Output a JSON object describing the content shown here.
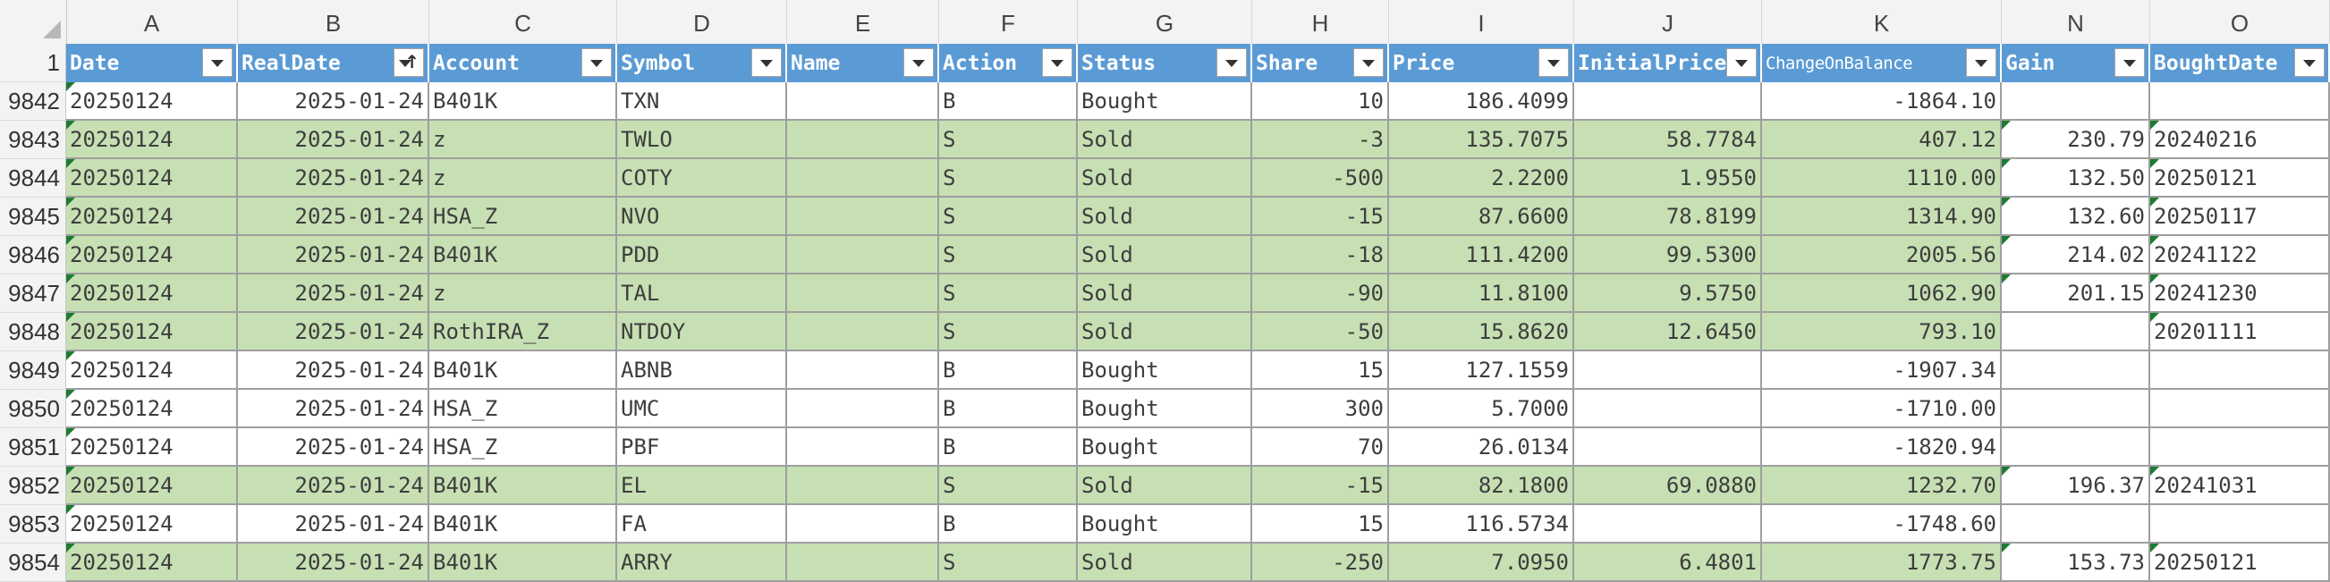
{
  "columns": [
    {
      "letter": "A",
      "header": "Date"
    },
    {
      "letter": "B",
      "header": "RealDate"
    },
    {
      "letter": "C",
      "header": "Account"
    },
    {
      "letter": "D",
      "header": "Symbol"
    },
    {
      "letter": "E",
      "header": "Name"
    },
    {
      "letter": "F",
      "header": "Action"
    },
    {
      "letter": "G",
      "header": "Status"
    },
    {
      "letter": "H",
      "header": "Share"
    },
    {
      "letter": "I",
      "header": "Price"
    },
    {
      "letter": "J",
      "header": "InitialPrice"
    },
    {
      "letter": "K",
      "header": "ChangeOnBalance"
    },
    {
      "letter": "N",
      "header": "Gain"
    },
    {
      "letter": "O",
      "header": "BoughtDate"
    }
  ],
  "header_row_number": "1",
  "sort_indicator_column": "RealDate",
  "colors": {
    "header_blue": "#5b9bd5",
    "sold_green": "#c6e0b4",
    "grid": "#9e9e9e",
    "flag_green": "#1e7b34"
  },
  "rows": [
    {
      "num": "9842",
      "cells": [
        "20250124",
        "2025-01-24",
        "B401K",
        "TXN",
        "",
        "B",
        "Bought",
        "10",
        "186.4099",
        "",
        "-1864.10",
        "",
        ""
      ],
      "status": "Bought"
    },
    {
      "num": "9843",
      "cells": [
        "20250124",
        "2025-01-24",
        "z",
        "TWLO",
        "",
        "S",
        "Sold",
        "-3",
        "135.7075",
        "58.7784",
        "407.12",
        "230.79",
        "20240216"
      ],
      "status": "Sold"
    },
    {
      "num": "9844",
      "cells": [
        "20250124",
        "2025-01-24",
        "z",
        "COTY",
        "",
        "S",
        "Sold",
        "-500",
        "2.2200",
        "1.9550",
        "1110.00",
        "132.50",
        "20250121"
      ],
      "status": "Sold"
    },
    {
      "num": "9845",
      "cells": [
        "20250124",
        "2025-01-24",
        "HSA_Z",
        "NVO",
        "",
        "S",
        "Sold",
        "-15",
        "87.6600",
        "78.8199",
        "1314.90",
        "132.60",
        "20250117"
      ],
      "status": "Sold"
    },
    {
      "num": "9846",
      "cells": [
        "20250124",
        "2025-01-24",
        "B401K",
        "PDD",
        "",
        "S",
        "Sold",
        "-18",
        "111.4200",
        "99.5300",
        "2005.56",
        "214.02",
        "20241122"
      ],
      "status": "Sold"
    },
    {
      "num": "9847",
      "cells": [
        "20250124",
        "2025-01-24",
        "z",
        "TAL",
        "",
        "S",
        "Sold",
        "-90",
        "11.8100",
        "9.5750",
        "1062.90",
        "201.15",
        "20241230"
      ],
      "status": "Sold"
    },
    {
      "num": "9848",
      "cells": [
        "20250124",
        "2025-01-24",
        "RothIRA_Z",
        "NTDOY",
        "",
        "S",
        "Sold",
        "-50",
        "15.8620",
        "12.6450",
        "793.10",
        "",
        "20201111"
      ],
      "status": "Sold"
    },
    {
      "num": "9849",
      "cells": [
        "20250124",
        "2025-01-24",
        "B401K",
        "ABNB",
        "",
        "B",
        "Bought",
        "15",
        "127.1559",
        "",
        "-1907.34",
        "",
        ""
      ],
      "status": "Bought"
    },
    {
      "num": "9850",
      "cells": [
        "20250124",
        "2025-01-24",
        "HSA_Z",
        "UMC",
        "",
        "B",
        "Bought",
        "300",
        "5.7000",
        "",
        "-1710.00",
        "",
        ""
      ],
      "status": "Bought"
    },
    {
      "num": "9851",
      "cells": [
        "20250124",
        "2025-01-24",
        "HSA_Z",
        "PBF",
        "",
        "B",
        "Bought",
        "70",
        "26.0134",
        "",
        "-1820.94",
        "",
        ""
      ],
      "status": "Bought"
    },
    {
      "num": "9852",
      "cells": [
        "20250124",
        "2025-01-24",
        "B401K",
        "EL",
        "",
        "S",
        "Sold",
        "-15",
        "82.1800",
        "69.0880",
        "1232.70",
        "196.37",
        "20241031"
      ],
      "status": "Sold"
    },
    {
      "num": "9853",
      "cells": [
        "20250124",
        "2025-01-24",
        "B401K",
        "FA",
        "",
        "B",
        "Bought",
        "15",
        "116.5734",
        "",
        "-1748.60",
        "",
        ""
      ],
      "status": "Bought"
    },
    {
      "num": "9854",
      "cells": [
        "20250124",
        "2025-01-24",
        "B401K",
        "ARRY",
        "",
        "S",
        "Sold",
        "-250",
        "7.0950",
        "6.4801",
        "1773.75",
        "153.73",
        "20250121"
      ],
      "status": "Sold"
    }
  ]
}
